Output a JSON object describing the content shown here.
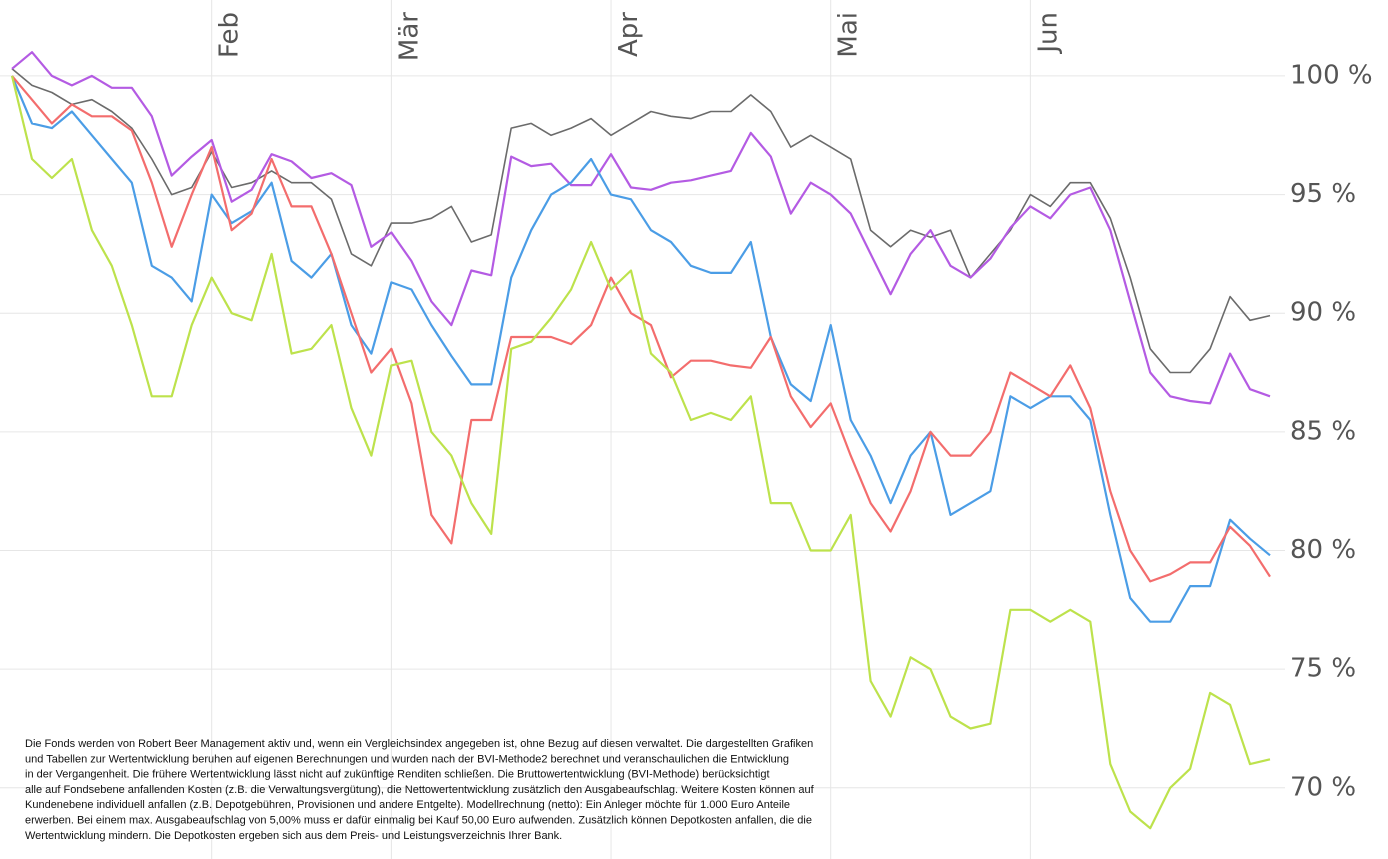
{
  "chart_data": {
    "type": "line",
    "categories": [
      null,
      null,
      null,
      null,
      null,
      null,
      null,
      null,
      null,
      null,
      "Feb",
      null,
      null,
      null,
      null,
      null,
      null,
      null,
      null,
      "Mär",
      null,
      null,
      null,
      null,
      null,
      null,
      null,
      null,
      null,
      null,
      "Apr",
      null,
      null,
      null,
      null,
      null,
      null,
      null,
      null,
      null,
      null,
      "Mai",
      null,
      null,
      null,
      null,
      null,
      null,
      null,
      null,
      null,
      "Jun",
      null,
      null,
      null,
      null,
      null,
      null,
      null,
      null,
      null,
      null,
      null,
      null
    ],
    "series": [
      {
        "color": "#6b6b6b",
        "values": [
          100.3,
          99.6,
          99.3,
          98.8,
          99,
          98.5,
          97.8,
          96.5,
          95,
          95.3,
          96.8,
          95.3,
          95.5,
          96,
          95.5,
          95.5,
          94.8,
          92.5,
          92,
          93.8,
          93.8,
          94,
          94.5,
          93,
          93.3,
          97.8,
          98,
          97.5,
          97.8,
          98.2,
          97.5,
          98,
          98.5,
          98.3,
          98.2,
          98.5,
          98.5,
          99.2,
          98.5,
          97,
          97.5,
          97,
          96.5,
          93.5,
          92.8,
          93.5,
          93.2,
          93.5,
          91.5,
          92.5,
          93.5,
          95,
          94.5,
          95.5,
          95.5,
          94,
          91.5,
          88.5,
          87.5,
          87.5,
          88.5,
          90.7,
          89.7,
          89.9
        ]
      },
      {
        "color": "#b45be3",
        "values": [
          100.3,
          101,
          100,
          99.6,
          100,
          99.5,
          99.5,
          98.3,
          95.8,
          96.6,
          97.3,
          94.7,
          95.2,
          96.7,
          96.4,
          95.7,
          95.9,
          95.4,
          92.8,
          93.4,
          92.2,
          90.5,
          89.5,
          91.8,
          91.6,
          96.6,
          96.2,
          96.3,
          95.4,
          95.4,
          96.7,
          95.3,
          95.2,
          95.5,
          95.6,
          95.8,
          96,
          97.6,
          96.6,
          94.2,
          95.5,
          95,
          94.2,
          92.5,
          90.8,
          92.5,
          93.5,
          92,
          91.5,
          92.3,
          93.6,
          94.5,
          94,
          95,
          95.3,
          93.5,
          90.5,
          87.5,
          86.5,
          86.3,
          86.2,
          88.3,
          86.8,
          86.5
        ]
      },
      {
        "color": "#4b9de6",
        "values": [
          100,
          98,
          97.8,
          98.5,
          97.5,
          96.5,
          95.5,
          92,
          91.5,
          90.5,
          95,
          93.8,
          94.3,
          95.5,
          92.2,
          91.5,
          92.5,
          89.5,
          88.3,
          91.3,
          91,
          89.5,
          88.2,
          87,
          87,
          91.5,
          93.5,
          95,
          95.5,
          96.5,
          95,
          94.8,
          93.5,
          93,
          92,
          91.7,
          91.7,
          93,
          89,
          87,
          86.3,
          89.5,
          85.5,
          84,
          82,
          84,
          85,
          81.5,
          82,
          82.5,
          86.5,
          86,
          86.5,
          86.5,
          85.5,
          81.5,
          78,
          77,
          77,
          78.5,
          78.5,
          81.3,
          80.5,
          79.8
        ]
      },
      {
        "color": "#f36d6d",
        "values": [
          100,
          99,
          98,
          98.8,
          98.3,
          98.3,
          97.7,
          95.5,
          92.8,
          95,
          97,
          93.5,
          94.2,
          96.5,
          94.5,
          94.5,
          92.5,
          90,
          87.5,
          88.5,
          86.2,
          81.5,
          80.3,
          85.5,
          85.5,
          89,
          89,
          89,
          88.7,
          89.5,
          91.5,
          90,
          89.5,
          87.3,
          88,
          88,
          87.8,
          87.7,
          89,
          86.5,
          85.2,
          86.2,
          84,
          82,
          80.8,
          82.5,
          85,
          84,
          84,
          85,
          87.5,
          87,
          86.5,
          87.8,
          86,
          82.5,
          80,
          78.7,
          79,
          79.5,
          79.5,
          81,
          80.2,
          78.9
        ]
      },
      {
        "color": "#bde24c",
        "values": [
          100,
          96.5,
          95.7,
          96.5,
          93.5,
          92,
          89.5,
          86.5,
          86.5,
          89.5,
          91.5,
          90,
          89.7,
          92.5,
          88.3,
          88.5,
          89.5,
          86,
          84,
          87.8,
          88,
          85,
          84,
          82,
          80.7,
          88.5,
          88.8,
          89.8,
          91,
          93,
          91,
          91.8,
          88.3,
          87.5,
          85.5,
          85.8,
          85.5,
          86.5,
          82,
          82,
          80,
          80,
          81.5,
          74.5,
          73,
          75.5,
          75,
          73,
          72.5,
          72.7,
          77.5,
          77.5,
          77,
          77.5,
          77,
          71,
          69,
          68.3,
          70,
          70.8,
          74,
          73.5,
          71,
          71.2
        ]
      }
    ],
    "ylim": [
      67,
      103.2
    ],
    "yticks": [
      {
        "value": 70,
        "label": "70 %"
      },
      {
        "value": 75,
        "label": "75 %"
      },
      {
        "value": 80,
        "label": "80 %"
      },
      {
        "value": 85,
        "label": "85 %"
      },
      {
        "value": 90,
        "label": "90 %"
      },
      {
        "value": 95,
        "label": "95 %"
      },
      {
        "value": 100,
        "label": "100 %"
      }
    ],
    "grid": true,
    "annotation": [
      "Die Fonds werden von Robert Beer Management aktiv und, wenn ein Vergleichsindex angegeben ist, ohne Bezug auf diesen verwaltet. Die dargestellten Grafiken",
      "und Tabellen zur Wertentwicklung beruhen auf eigenen Berechnungen und wurden nach der BVI-Methode2 berechnet und veranschaulichen die Entwicklung",
      "in der Vergangenheit. Die frühere Wertentwicklung lässt nicht auf zukünftige Renditen schließen. Die Bruttowertentwicklung (BVI-Methode) berücksichtigt",
      "alle auf Fondsebene anfallenden Kosten (z.B. die Verwaltungsvergütung), die Nettowertentwicklung zusätzlich den Ausgabeaufschlag. Weitere Kosten können auf",
      "Kundenebene individuell anfallen (z.B. Depotgebühren, Provisionen und andere Entgelte). Modellrechnung (netto): Ein Anleger möchte für 1.000 Euro Anteile",
      "erwerben. Bei einem max. Ausgabeaufschlag von 5,00% muss er dafür einmalig bei Kauf 50,00 Euro aufwenden. Zusätzlich können Depotkosten anfallen, die die",
      "Wertentwicklung mindern. Die Depotkosten ergeben sich aus dem Preis- und Leistungsverzeichnis Ihrer Bank."
    ]
  }
}
